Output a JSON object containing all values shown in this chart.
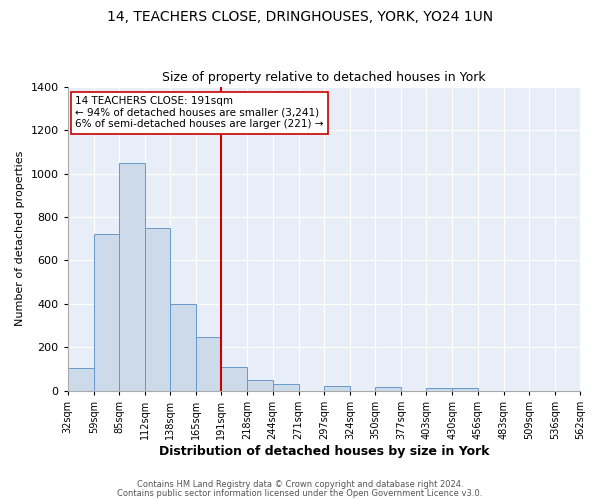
{
  "title1": "14, TEACHERS CLOSE, DRINGHOUSES, YORK, YO24 1UN",
  "title2": "Size of property relative to detached houses in York",
  "xlabel": "Distribution of detached houses by size in York",
  "ylabel": "Number of detached properties",
  "bar_edges": [
    32,
    59,
    85,
    112,
    138,
    165,
    191,
    218,
    244,
    271,
    297,
    324,
    350,
    377,
    403,
    430,
    456,
    483,
    509,
    536,
    562
  ],
  "bar_heights": [
    105,
    720,
    1050,
    750,
    400,
    245,
    110,
    50,
    28,
    0,
    20,
    0,
    15,
    0,
    10,
    10,
    0,
    0,
    0,
    0
  ],
  "bar_color": "#ccdaea",
  "bar_edge_color": "#6699cc",
  "vline_x": 191,
  "vline_color": "#cc0000",
  "annotation_box_text": "14 TEACHERS CLOSE: 191sqm\n← 94% of detached houses are smaller (3,241)\n6% of semi-detached houses are larger (221) →",
  "ylim": [
    0,
    1400
  ],
  "yticks": [
    0,
    200,
    400,
    600,
    800,
    1000,
    1200,
    1400
  ],
  "tick_labels": [
    "32sqm",
    "59sqm",
    "85sqm",
    "112sqm",
    "138sqm",
    "165sqm",
    "191sqm",
    "218sqm",
    "244sqm",
    "271sqm",
    "297sqm",
    "324sqm",
    "350sqm",
    "377sqm",
    "403sqm",
    "430sqm",
    "456sqm",
    "483sqm",
    "509sqm",
    "536sqm",
    "562sqm"
  ],
  "footer1": "Contains HM Land Registry data © Crown copyright and database right 2024.",
  "footer2": "Contains public sector information licensed under the Open Government Licence v3.0.",
  "plot_bg_color": "#e8eef8",
  "fig_bg_color": "#ffffff",
  "title1_fontsize": 10,
  "title2_fontsize": 9,
  "xlabel_fontsize": 9,
  "ylabel_fontsize": 8,
  "footer_fontsize": 6,
  "annot_fontsize": 7.5,
  "tick_fontsize": 7
}
